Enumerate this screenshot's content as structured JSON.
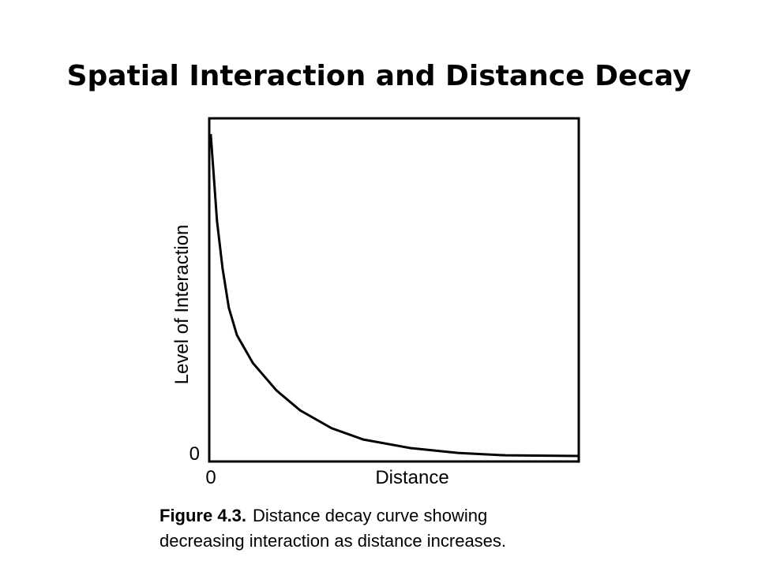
{
  "chart_data": {
    "type": "line",
    "title": "Spatial Interaction and Distance Decay",
    "x_label": "Distance",
    "y_label": "Level of Interaction",
    "x": [
      0.4,
      1.1,
      2.1,
      3.6,
      5.3,
      7.5,
      11.8,
      18.2,
      24.6,
      33.1,
      41.7,
      54.5,
      67.3,
      80.1,
      100
    ],
    "series": [
      {
        "color": "#000000",
        "values": [
          95.4,
          85.1,
          70.1,
          56.3,
          44.8,
          36.8,
          28.7,
          20.7,
          14.9,
          9.7,
          6.4,
          3.9,
          2.5,
          1.8,
          1.6
        ]
      }
    ],
    "xlim": [
      0,
      100
    ],
    "ylim": [
      0,
      100
    ],
    "xticks": [
      0
    ],
    "yticks": [
      0
    ],
    "grid": false,
    "caption": {
      "label": "Figure 4.3.",
      "lines": [
        "Distance decay curve showing",
        "decreasing interaction as distance increases."
      ]
    }
  }
}
